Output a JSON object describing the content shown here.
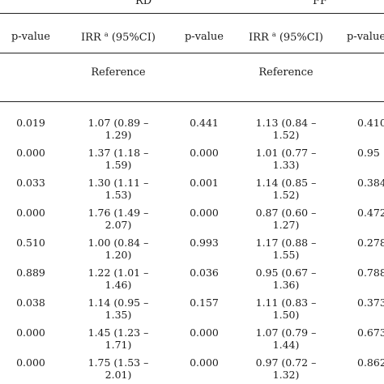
{
  "group_headers": {
    "rd": "RD",
    "ff": "FF"
  },
  "columns": {
    "pvalue": "p-value",
    "irr_prefix": "IRR",
    "irr_sup": "a",
    "irr_suffix": " (95%CI)"
  },
  "reference_label": "Reference",
  "rows": [
    {
      "p1": "0.019",
      "irr1a": "1.07 (0.89 –",
      "irr1b": "1.29)",
      "p2": "0.441",
      "irr2a": "1.13 (0.84 –",
      "irr2b": "1.52)",
      "p3": "0.410"
    },
    {
      "p1": "0.000",
      "irr1a": "1.37 (1.18 –",
      "irr1b": "1.59)",
      "p2": "0.000",
      "irr2a": "1.01 (0.77 –",
      "irr2b": "1.33)",
      "p3": "0.95"
    },
    {
      "p1": "0.033",
      "irr1a": "1.30 (1.11 –",
      "irr1b": "1.53)",
      "p2": "0.001",
      "irr2a": "1.14 (0.85 –",
      "irr2b": "1.52)",
      "p3": "0.384"
    },
    {
      "p1": "0.000",
      "irr1a": "1.76 (1.49 –",
      "irr1b": "2.07)",
      "p2": "0.000",
      "irr2a": "0.87 (0.60 –",
      "irr2b": "1.27)",
      "p3": "0.472"
    },
    {
      "p1": "0.510",
      "irr1a": "1.00 (0.84 –",
      "irr1b": "1.20)",
      "p2": "0.993",
      "irr2a": "1.17 (0.88 –",
      "irr2b": "1.55)",
      "p3": "0.278"
    },
    {
      "p1": "0.889",
      "irr1a": "1.22 (1.01 –",
      "irr1b": "1.46)",
      "p2": "0.036",
      "irr2a": "0.95 (0.67 –",
      "irr2b": "1.36)",
      "p3": "0.788"
    },
    {
      "p1": "0.038",
      "irr1a": "1.14 (0.95 –",
      "irr1b": "1.35)",
      "p2": "0.157",
      "irr2a": "1.11 (0.83 –",
      "irr2b": "1.50)",
      "p3": "0.373"
    },
    {
      "p1": "0.000",
      "irr1a": "1.45 (1.23 –",
      "irr1b": "1.71)",
      "p2": "0.000",
      "irr2a": "1.07 (0.79 –",
      "irr2b": "1.44)",
      "p3": "0.673"
    },
    {
      "p1": "0.000",
      "irr1a": "1.75 (1.53 –",
      "irr1b": "2.01)",
      "p2": "0.000",
      "irr2a": "0.97 (0.72 –",
      "irr2b": "1.32)",
      "p3": "0.862"
    }
  ]
}
